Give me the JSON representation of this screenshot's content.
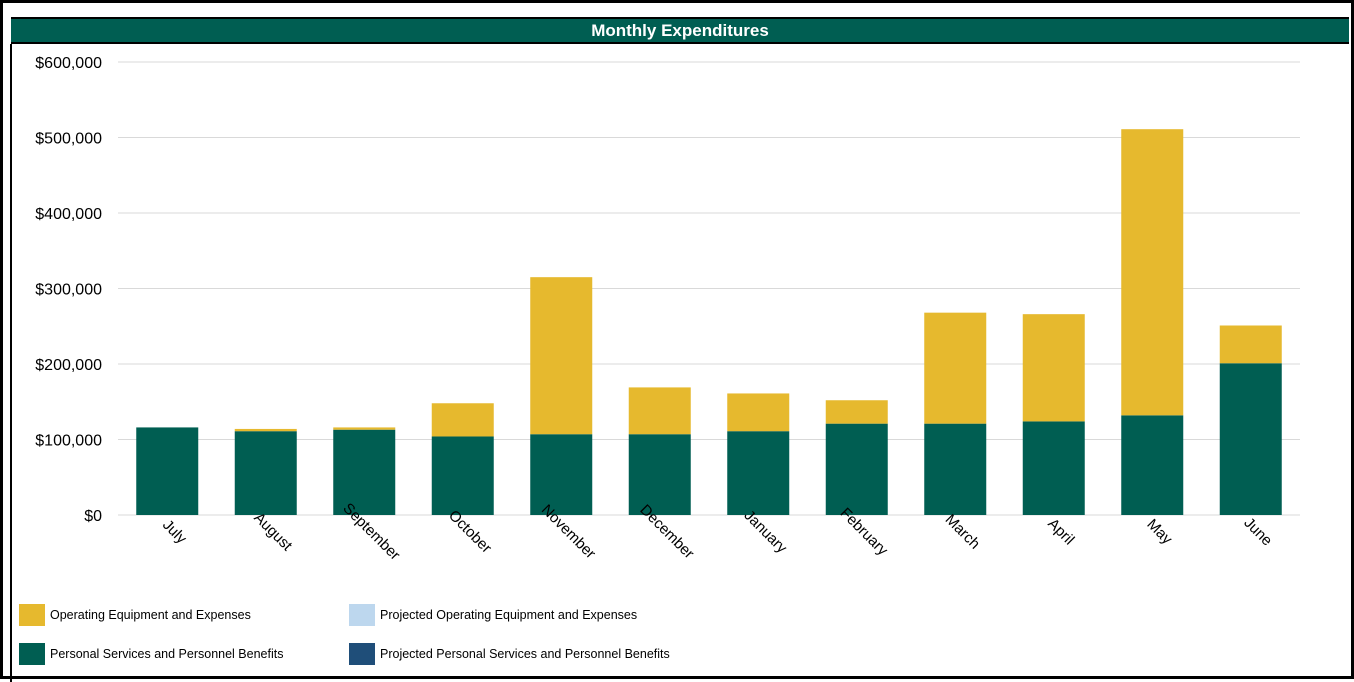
{
  "chart_data": {
    "type": "bar",
    "stacked": true,
    "title": "Monthly Expenditures",
    "categories": [
      "July",
      "August",
      "September",
      "October",
      "November",
      "December",
      "January",
      "February",
      "March",
      "April",
      "May",
      "June"
    ],
    "series": [
      {
        "name": "Personal Services and Personnel Benefits",
        "color": "#005E52",
        "values": [
          116000,
          111000,
          113000,
          104000,
          107000,
          107000,
          111000,
          121000,
          121000,
          124000,
          132000,
          201000
        ]
      },
      {
        "name": "Operating Equipment and Expenses",
        "color": "#E6B92E",
        "values": [
          0,
          3000,
          3000,
          44000,
          208000,
          62000,
          50000,
          31000,
          147000,
          142000,
          379000,
          50000
        ]
      },
      {
        "name": "Projected Operating Equipment and Expenses",
        "color": "#BDD7EE",
        "values": [
          0,
          0,
          0,
          0,
          0,
          0,
          0,
          0,
          0,
          0,
          0,
          0
        ]
      },
      {
        "name": "Projected Personal Services and Personnel Benefits",
        "color": "#1F4E79",
        "values": [
          0,
          0,
          0,
          0,
          0,
          0,
          0,
          0,
          0,
          0,
          0,
          0
        ]
      }
    ],
    "ylim": [
      0,
      600000
    ],
    "yticks": [
      "$0",
      "$100,000",
      "$200,000",
      "$300,000",
      "$400,000",
      "$500,000",
      "$600,000"
    ],
    "grid": true,
    "legend_position": "bottom-left",
    "title_bg": "#005E52"
  }
}
